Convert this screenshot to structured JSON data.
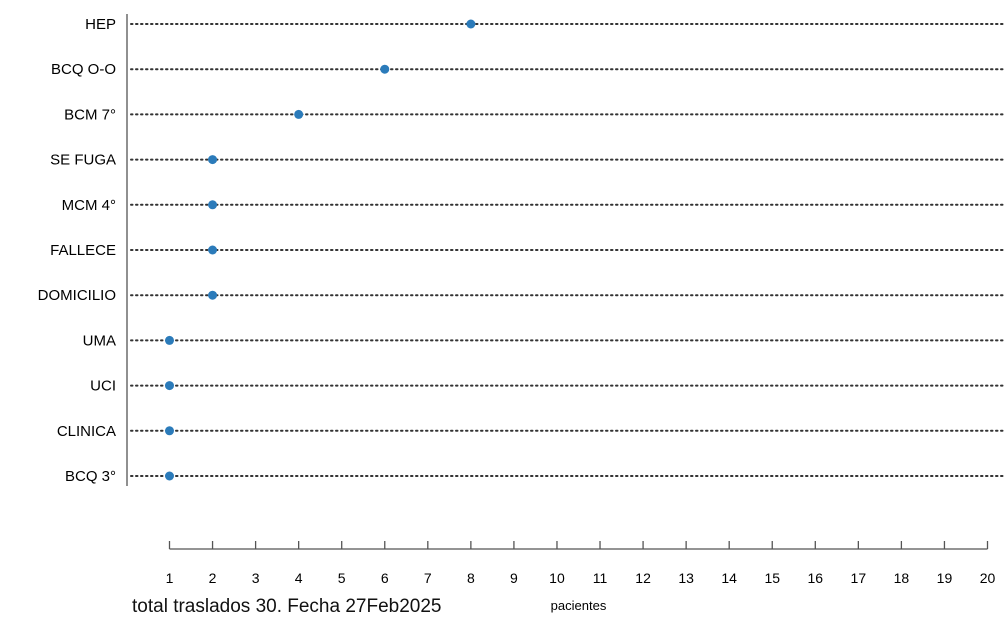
{
  "chart_data": {
    "type": "scatter",
    "categories": [
      "HEP",
      "BCQ O-O",
      "BCM 7°",
      "SE FUGA",
      "MCM 4°",
      "FALLECE",
      "DOMICILIO",
      "UMA",
      "UCI",
      "CLINICA",
      "BCQ 3°"
    ],
    "values": [
      8,
      6,
      4,
      2,
      2,
      2,
      2,
      1,
      1,
      1,
      1
    ],
    "xlabel": "pacientes",
    "xlim": [
      1,
      20
    ],
    "xticks": [
      1,
      2,
      3,
      4,
      5,
      6,
      7,
      8,
      9,
      10,
      11,
      12,
      13,
      14,
      15,
      16,
      17,
      18,
      19,
      20
    ],
    "grid": "dotted horizontal guide lines",
    "legend": "none",
    "colors": {
      "point": "#2b7bba",
      "guide": "#333333",
      "axis": "#555555"
    }
  },
  "caption": "total traslados 30. Fecha 27Feb2025"
}
